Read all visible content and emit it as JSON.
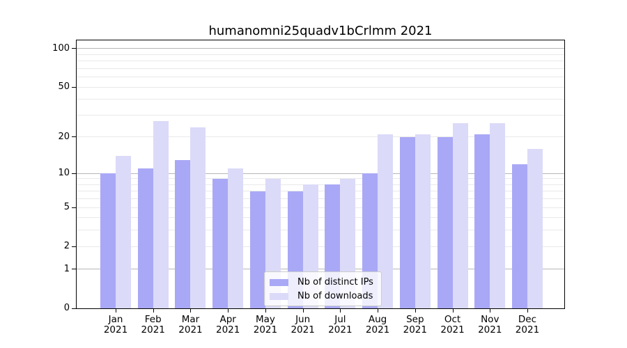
{
  "title": "humanomni25quadv1bCrlmm 2021",
  "colors": {
    "ips_bar": "#a9a8f6",
    "downloads_bar": "#dbdaf8",
    "grid_major": "#b6b6b6",
    "grid_minor": "#e9e9e9",
    "spine": "#000000",
    "text": "#000000",
    "legend_border": "#cccccc",
    "legend_bg": "rgba(255,255,255,0.8)"
  },
  "chart_data": {
    "type": "bar",
    "title": "humanomni25quadv1bCrlmm 2021",
    "categories": [
      "Jan",
      "Feb",
      "Mar",
      "Apr",
      "May",
      "Jun",
      "Jul",
      "Aug",
      "Sep",
      "Oct",
      "Nov",
      "Dec"
    ],
    "year": "2021",
    "series": [
      {
        "name": "Nb of distinct IPs",
        "values": [
          10,
          11,
          13,
          9,
          7,
          7,
          8,
          10,
          20,
          20,
          21,
          12
        ]
      },
      {
        "name": "Nb of downloads",
        "values": [
          14,
          27,
          24,
          11,
          9,
          8,
          9,
          21,
          21,
          26,
          26,
          16
        ]
      }
    ],
    "xlabel": "",
    "ylabel": "",
    "yscale": "log1p",
    "ylim": [
      0,
      116
    ],
    "yticks": [
      0,
      1,
      2,
      5,
      10,
      20,
      50,
      100
    ],
    "grid_major_values": [
      1,
      10,
      100
    ],
    "grid_minor_values": [
      2,
      3,
      4,
      5,
      6,
      7,
      8,
      9,
      20,
      30,
      40,
      50,
      60,
      70,
      80,
      90
    ],
    "grid": true,
    "legend_position": "lower center"
  }
}
